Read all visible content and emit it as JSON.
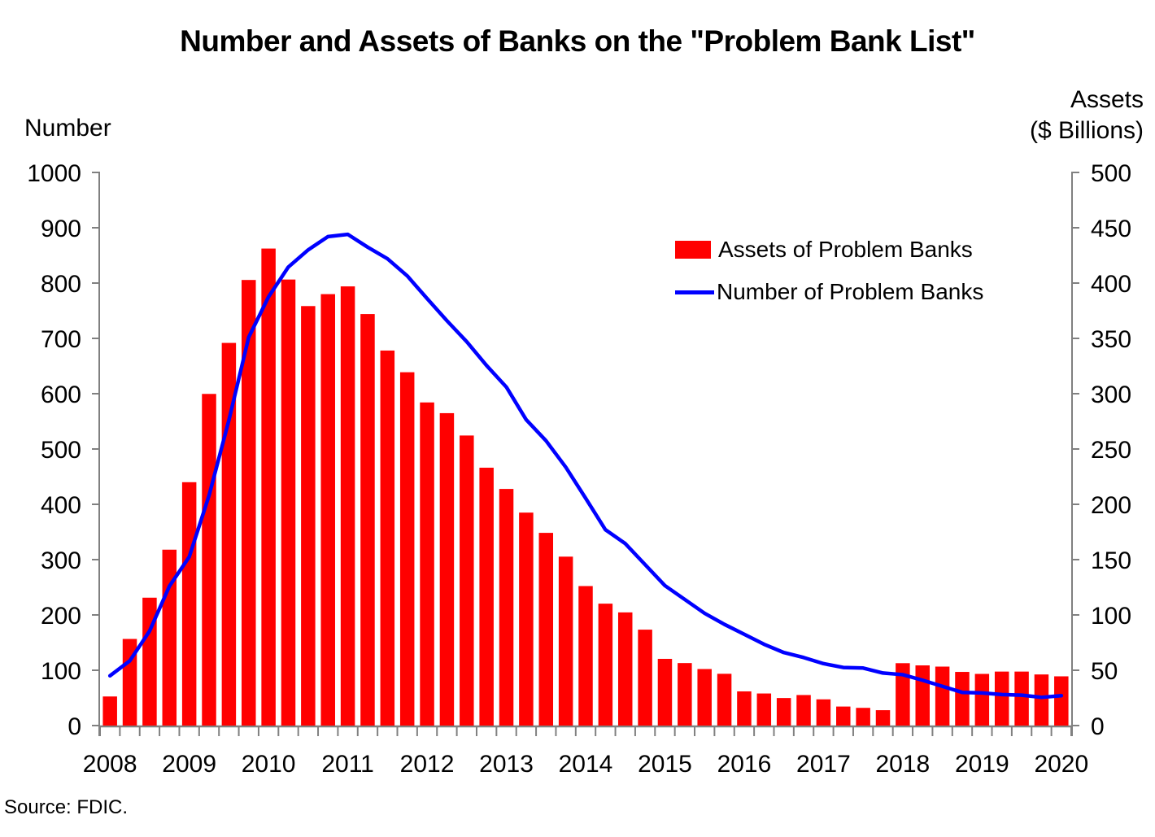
{
  "source": "Source: FDIC.",
  "colors": {
    "bar": "#ff0000",
    "line": "#0000ff",
    "axis": "#808080",
    "text": "#000000",
    "background": "#ffffff"
  },
  "chart_data": {
    "type": "bar",
    "title": "Number and Assets of Banks on the \"Problem Bank List\"",
    "grid": false,
    "legend_position": "inside-upper-right",
    "x": [
      "2008 Q1",
      "2008 Q2",
      "2008 Q3",
      "2008 Q4",
      "2009 Q1",
      "2009 Q2",
      "2009 Q3",
      "2009 Q4",
      "2010 Q1",
      "2010 Q2",
      "2010 Q3",
      "2010 Q4",
      "2011 Q1",
      "2011 Q2",
      "2011 Q3",
      "2011 Q4",
      "2012 Q1",
      "2012 Q2",
      "2012 Q3",
      "2012 Q4",
      "2013 Q1",
      "2013 Q2",
      "2013 Q3",
      "2013 Q4",
      "2014 Q1",
      "2014 Q2",
      "2014 Q3",
      "2014 Q4",
      "2015 Q1",
      "2015 Q2",
      "2015 Q3",
      "2015 Q4",
      "2016 Q1",
      "2016 Q2",
      "2016 Q3",
      "2016 Q4",
      "2017 Q1",
      "2017 Q2",
      "2017 Q3",
      "2017 Q4",
      "2018 Q1",
      "2018 Q2",
      "2018 Q3",
      "2018 Q4",
      "2019 Q1",
      "2019 Q2",
      "2019 Q3",
      "2019 Q4",
      "2020 Q1"
    ],
    "year_ticks": [
      2008,
      2009,
      2010,
      2011,
      2012,
      2013,
      2014,
      2015,
      2016,
      2017,
      2018,
      2019,
      2020
    ],
    "series": [
      {
        "name": "Assets of Problem Banks",
        "type": "bar",
        "axis": "right",
        "unit": "$ billions",
        "color": "#ff0000",
        "values": [
          26.3,
          78.3,
          115.6,
          159.0,
          220.0,
          299.8,
          345.9,
          402.8,
          431.2,
          403.2,
          379.2,
          390.0,
          397.0,
          372.0,
          339.0,
          319.4,
          292.1,
          282.4,
          262.2,
          233.1,
          213.9,
          192.5,
          174.2,
          152.7,
          126.1,
          110.2,
          102.3,
          86.7,
          60.3,
          56.5,
          51.1,
          46.8,
          30.9,
          29.0,
          24.9,
          27.6,
          23.7,
          17.2,
          16.0,
          13.9,
          56.4,
          54.4,
          53.3,
          48.5,
          46.7,
          48.8,
          48.8,
          46.2,
          44.5
        ]
      },
      {
        "name": "Number of Problem Banks",
        "type": "line",
        "axis": "left",
        "unit": "banks",
        "color": "#0000ff",
        "values": [
          90,
          117,
          171,
          252,
          305,
          416,
          552,
          702,
          775,
          829,
          860,
          884,
          888,
          865,
          844,
          813,
          772,
          732,
          694,
          651,
          612,
          553,
          515,
          467,
          411,
          354,
          329,
          291,
          253,
          228,
          203,
          183,
          165,
          147,
          132,
          123,
          112,
          105,
          104,
          95,
          92,
          82,
          71,
          60,
          59,
          56,
          55,
          51,
          54
        ]
      }
    ],
    "left_axis": {
      "title": "Number",
      "range": [
        0,
        1000
      ],
      "tick_step": 100,
      "ticks": [
        0,
        100,
        200,
        300,
        400,
        500,
        600,
        700,
        800,
        900,
        1000
      ]
    },
    "right_axis": {
      "title_line1": "Assets",
      "title_line2": "($ Billions)",
      "range": [
        0,
        500
      ],
      "tick_step": 50,
      "ticks": [
        0,
        50,
        100,
        150,
        200,
        250,
        300,
        350,
        400,
        450,
        500
      ]
    },
    "x_axis": {
      "tick_interval": "quarterly",
      "label_interval": "yearly",
      "first_label": "2008",
      "last_label": "2020"
    }
  }
}
